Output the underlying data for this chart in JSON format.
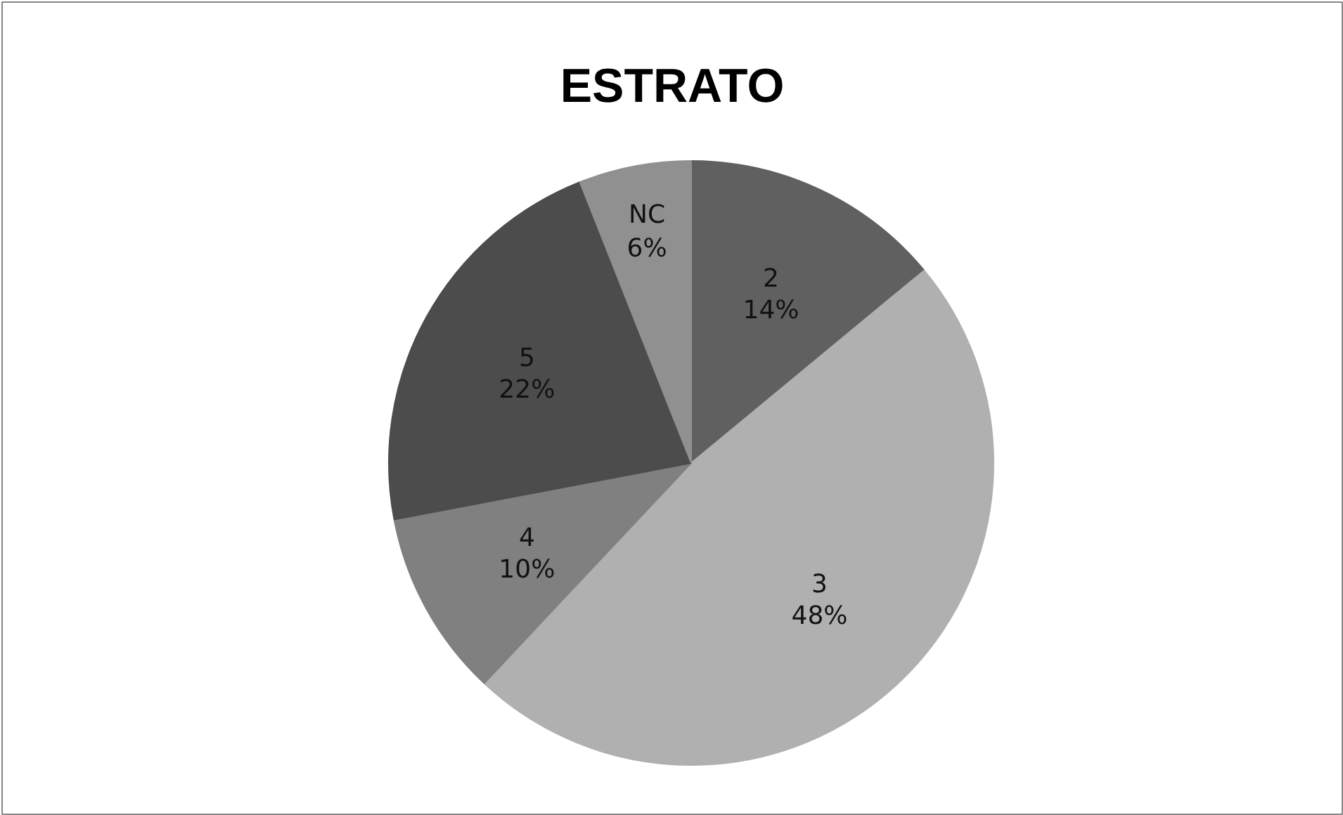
{
  "chart_data": {
    "type": "pie",
    "title": "ESTRATO",
    "categories": [
      "2",
      "3",
      "4",
      "5",
      "NC"
    ],
    "values": [
      14,
      48,
      10,
      22,
      6
    ],
    "value_labels": [
      "14%",
      "48%",
      "10%",
      "22%",
      "6%"
    ],
    "colors": [
      "#606060",
      "#b0b0b0",
      "#808080",
      "#4c4c4c",
      "#909090"
    ]
  }
}
